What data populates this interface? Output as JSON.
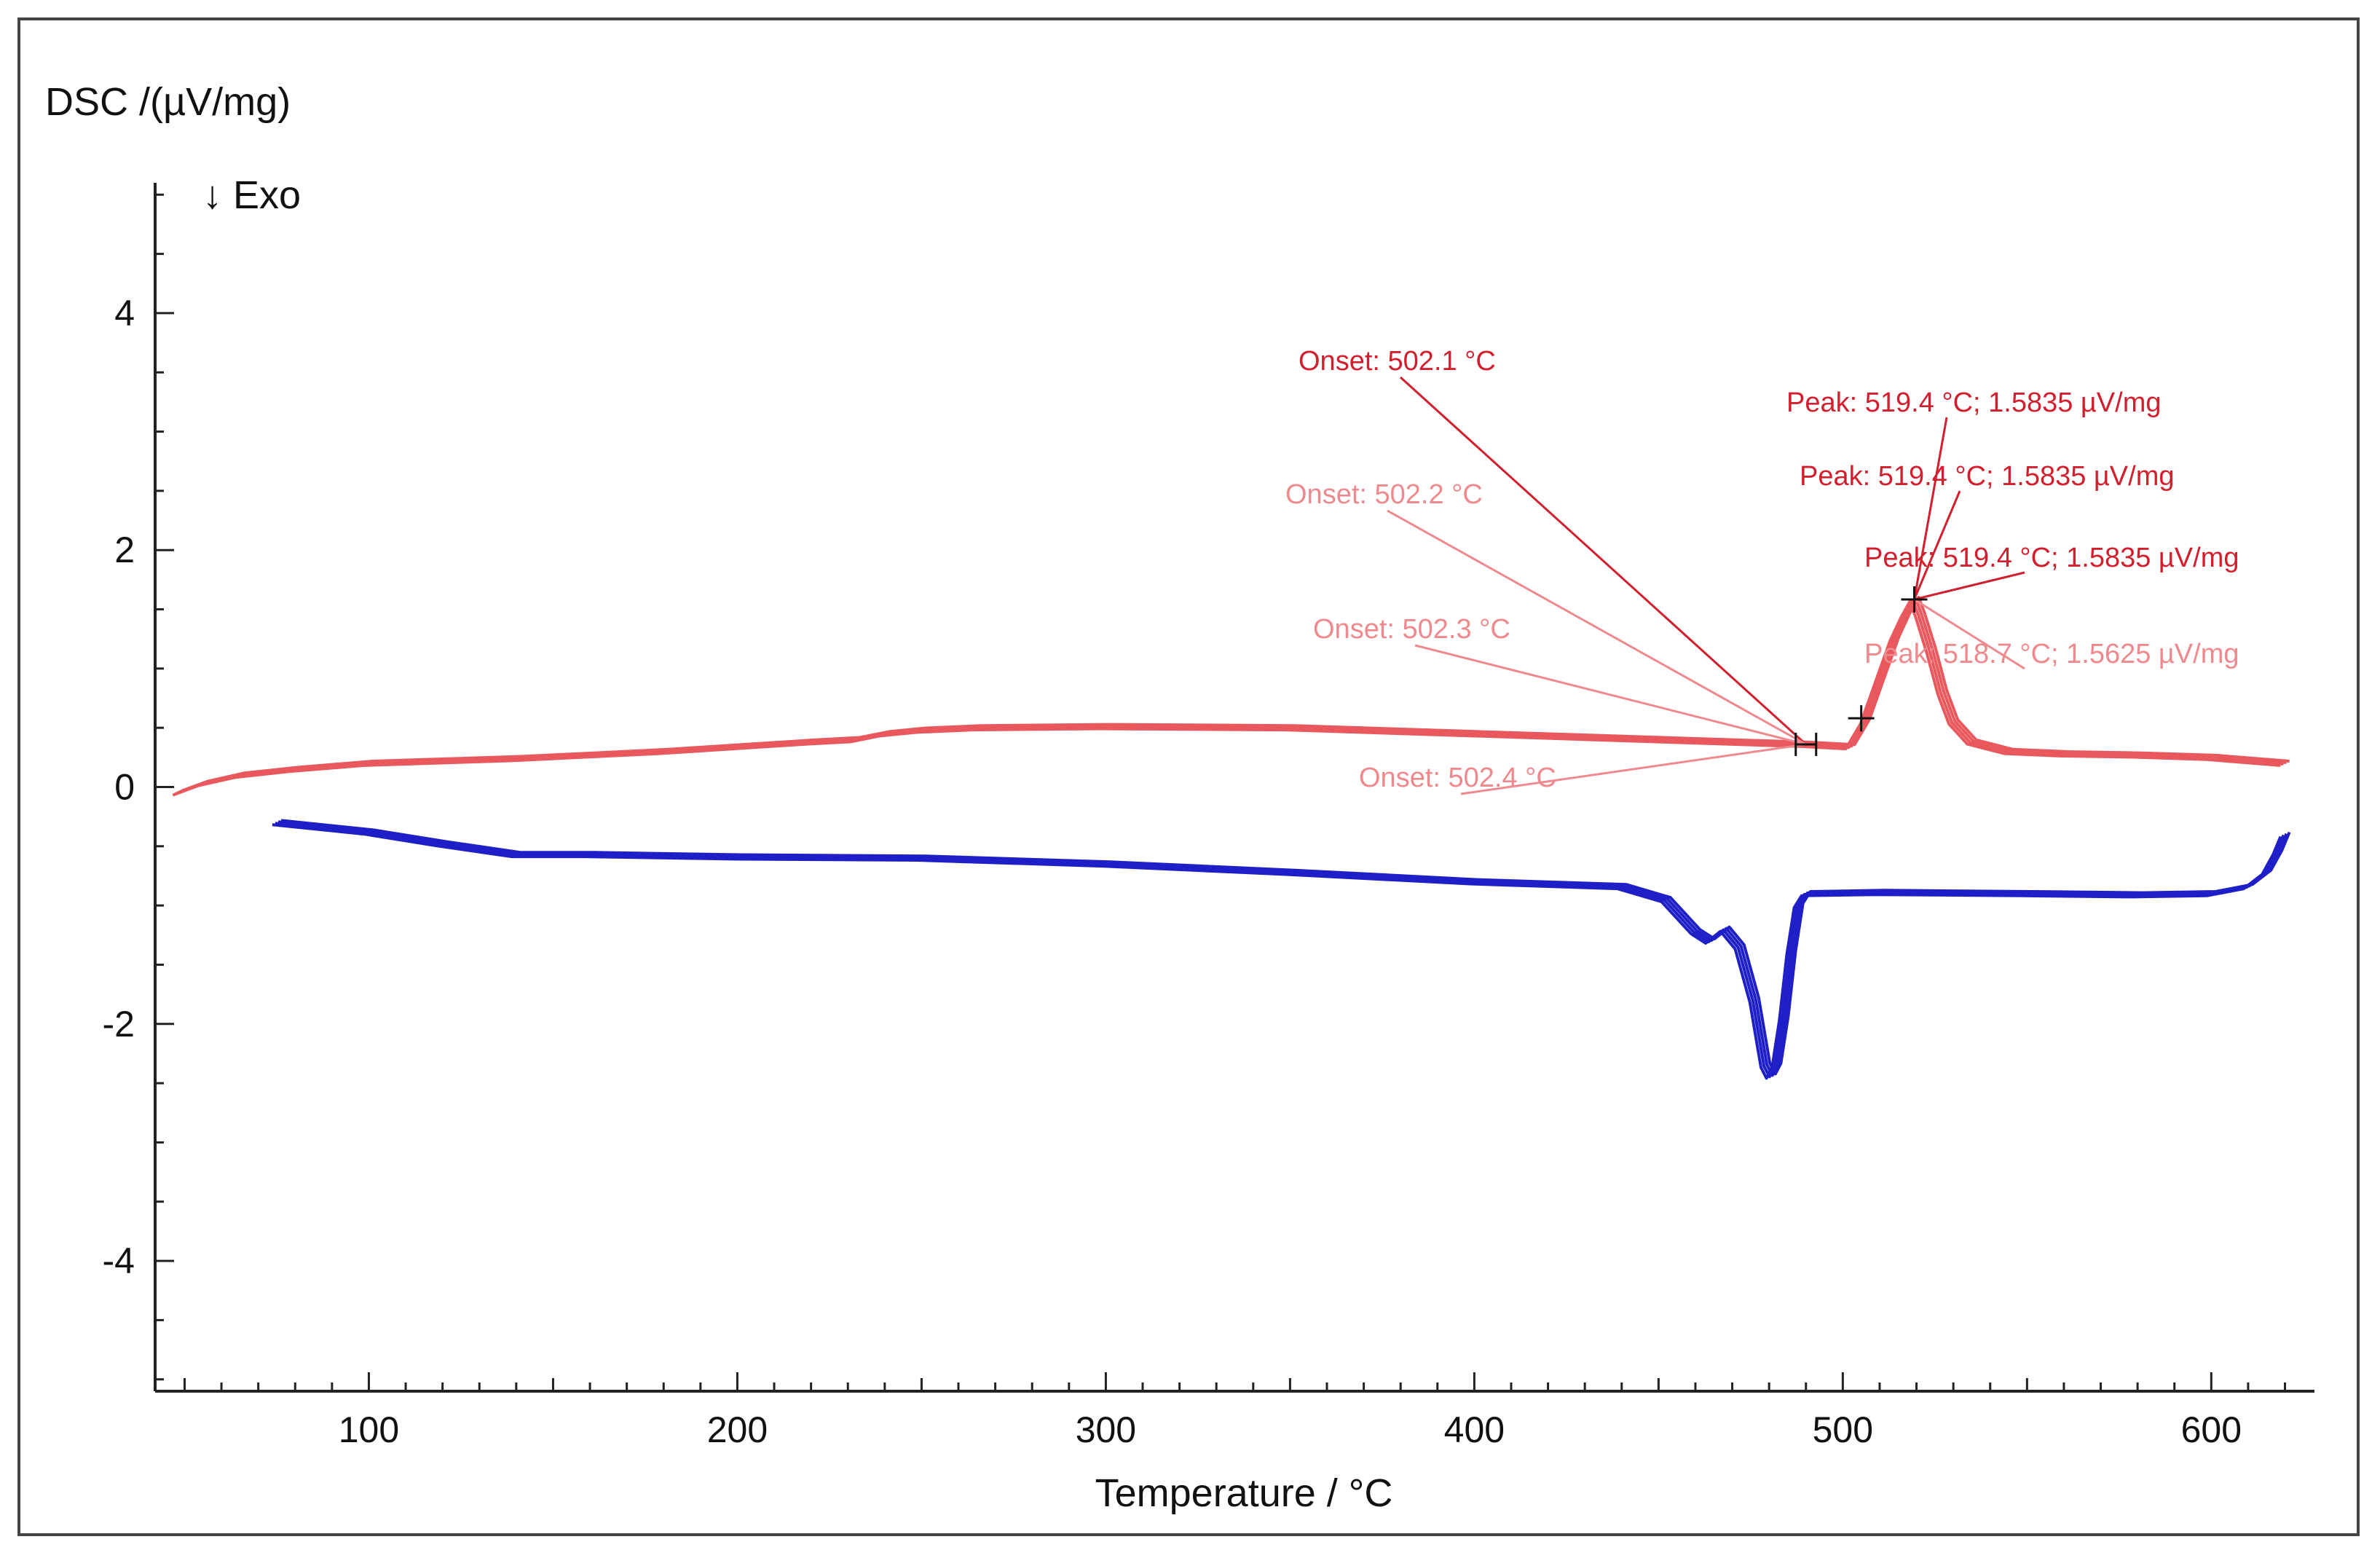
{
  "chart_data": {
    "type": "line",
    "title": "",
    "ylabel": "DSC /(µV/mg)",
    "xlabel": "Temperature / °C",
    "direction_label": "↓ Exo",
    "xlim": [
      42,
      628
    ],
    "ylim": [
      -5.1,
      5.1
    ],
    "x_ticks": [
      100,
      200,
      300,
      400,
      500,
      600
    ],
    "y_ticks": [
      -4,
      -2,
      0,
      2,
      4
    ],
    "grid": false,
    "colors": {
      "heating": "#e8585c",
      "cooling": "#1f1fc8",
      "ann_dark": "#d21f2e",
      "ann_light": "#ee8a8e",
      "marker": "#111111"
    },
    "series": [
      {
        "name": "heating",
        "copies": 4,
        "points": [
          [
            48,
            -0.05
          ],
          [
            55,
            0.03
          ],
          [
            65,
            0.1
          ],
          [
            80,
            0.15
          ],
          [
            100,
            0.2
          ],
          [
            120,
            0.22
          ],
          [
            140,
            0.24
          ],
          [
            160,
            0.27
          ],
          [
            180,
            0.3
          ],
          [
            200,
            0.34
          ],
          [
            220,
            0.38
          ],
          [
            232,
            0.4
          ],
          [
            240,
            0.45
          ],
          [
            250,
            0.48
          ],
          [
            265,
            0.5
          ],
          [
            300,
            0.51
          ],
          [
            350,
            0.5
          ],
          [
            400,
            0.45
          ],
          [
            450,
            0.4
          ],
          [
            490,
            0.36
          ],
          [
            502,
            0.34
          ],
          [
            506,
            0.55
          ],
          [
            510,
            0.9
          ],
          [
            514,
            1.25
          ],
          [
            517,
            1.45
          ],
          [
            519.4,
            1.5835
          ],
          [
            521,
            1.45
          ],
          [
            524,
            1.15
          ],
          [
            527,
            0.8
          ],
          [
            530,
            0.55
          ],
          [
            535,
            0.38
          ],
          [
            545,
            0.3
          ],
          [
            560,
            0.28
          ],
          [
            580,
            0.27
          ],
          [
            600,
            0.25
          ],
          [
            620,
            0.2
          ]
        ]
      },
      {
        "name": "cooling",
        "copies": 4,
        "points": [
          [
            75,
            -0.3
          ],
          [
            100,
            -0.38
          ],
          [
            120,
            -0.48
          ],
          [
            140,
            -0.57
          ],
          [
            160,
            -0.57
          ],
          [
            200,
            -0.59
          ],
          [
            250,
            -0.6
          ],
          [
            300,
            -0.65
          ],
          [
            350,
            -0.72
          ],
          [
            400,
            -0.8
          ],
          [
            440,
            -0.84
          ],
          [
            452,
            -0.95
          ],
          [
            460,
            -1.22
          ],
          [
            464,
            -1.3
          ],
          [
            468,
            -1.2
          ],
          [
            472,
            -1.35
          ],
          [
            476,
            -1.8
          ],
          [
            479,
            -2.35
          ],
          [
            480.5,
            -2.44
          ],
          [
            482,
            -2.35
          ],
          [
            484,
            -1.95
          ],
          [
            486,
            -1.4
          ],
          [
            488,
            -1.0
          ],
          [
            490,
            -0.9
          ],
          [
            510,
            -0.89
          ],
          [
            550,
            -0.9
          ],
          [
            580,
            -0.91
          ],
          [
            600,
            -0.9
          ],
          [
            610,
            -0.84
          ],
          [
            615,
            -0.72
          ],
          [
            618,
            -0.55
          ],
          [
            620,
            -0.4
          ]
        ]
      }
    ],
    "annotations": [
      {
        "text": "Onset: 502.1 °C",
        "tone": "dark"
      },
      {
        "text": "Onset: 502.2 °C",
        "tone": "light"
      },
      {
        "text": "Onset: 502.3 °C",
        "tone": "light"
      },
      {
        "text": "Onset: 502.4 °C",
        "tone": "light"
      },
      {
        "text": "Peak: 519.4 °C; 1.5835 µV/mg",
        "tone": "dark"
      },
      {
        "text": "Peak: 519.4 °C; 1.5835 µV/mg",
        "tone": "dark"
      },
      {
        "text": "Peak: 519.4 °C; 1.5835 µV/mg",
        "tone": "dark"
      },
      {
        "text": "Peak: 518.7 °C; 1.5625 µV/mg",
        "tone": "light"
      }
    ],
    "markers": [
      {
        "name": "onset-marker",
        "x": 490,
        "y": 0.36
      },
      {
        "name": "inflection-marker",
        "x": 505,
        "y": 0.58
      },
      {
        "name": "peak-marker",
        "x": 519.4,
        "y": 1.5835
      }
    ]
  }
}
